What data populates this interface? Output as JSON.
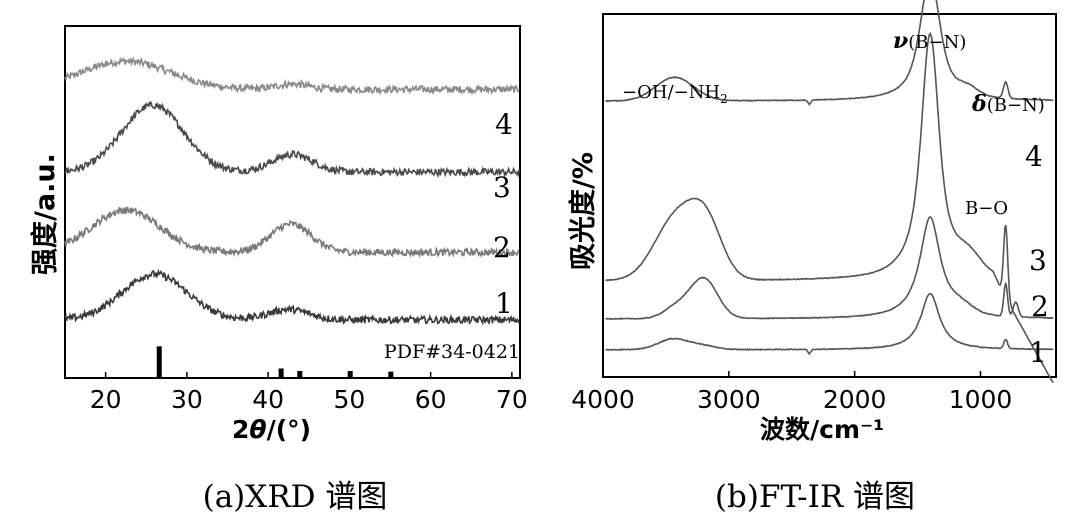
{
  "chart_data": [
    {
      "type": "line",
      "title": "",
      "caption": "(a)XRD 谱图",
      "xlabel_prefix": "2",
      "xlabel_theta": "θ",
      "xlabel_suffix": "/(°)",
      "ylabel": "强度/a.u.",
      "xlim": [
        15,
        71
      ],
      "xticks": [
        "20",
        "30",
        "40",
        "50",
        "60",
        "70"
      ],
      "xtick_values": [
        20,
        30,
        40,
        50,
        60,
        70
      ],
      "reference_label": "PDF#34-0421",
      "reference_peaks": [
        {
          "x": 26.6,
          "intensity": 1.0
        },
        {
          "x": 41.6,
          "intensity": 0.3
        },
        {
          "x": 43.9,
          "intensity": 0.22
        },
        {
          "x": 50.1,
          "intensity": 0.22
        },
        {
          "x": 55.1,
          "intensity": 0.2
        }
      ],
      "series": [
        {
          "name": "4",
          "label": "4",
          "color": "#8a8a8a",
          "baseline": 0.82,
          "peaks": [
            {
              "x": 22.5,
              "h": 0.08,
              "w": 5.5
            },
            {
              "x": 43,
              "h": 0.015,
              "w": 2
            }
          ]
        },
        {
          "name": "3",
          "label": "3",
          "color": "#4a4a4a",
          "baseline": 0.585,
          "peaks": [
            {
              "x": 25.8,
              "h": 0.19,
              "w": 3.8
            },
            {
              "x": 43,
              "h": 0.05,
              "w": 2.5
            }
          ]
        },
        {
          "name": "2",
          "label": "2",
          "color": "#7a7a7a",
          "baseline": 0.357,
          "peaks": [
            {
              "x": 22.5,
              "h": 0.12,
              "w": 4.2
            },
            {
              "x": 42.8,
              "h": 0.08,
              "w": 2.5
            }
          ]
        },
        {
          "name": "1",
          "label": "1",
          "color": "#3a3a3a",
          "baseline": 0.165,
          "peaks": [
            {
              "x": 26,
              "h": 0.13,
              "w": 4.0
            },
            {
              "x": 42.5,
              "h": 0.03,
              "w": 2.5
            }
          ]
        }
      ]
    },
    {
      "type": "line",
      "title": "",
      "caption": "(b)FT-IR 谱图",
      "xlabel": "波数/cm⁻¹",
      "ylabel": "吸光度/%",
      "xlim": [
        4000,
        400
      ],
      "xticks": [
        "4000",
        "3000",
        "2000",
        "1000"
      ],
      "xtick_values": [
        4000,
        3000,
        2000,
        1000
      ],
      "annotations": [
        "−OH/−NH₂",
        "ν(B−N)",
        "δ(B−N)",
        "B−O"
      ],
      "annotation_parts": {
        "oh_nh": "−OH/−NH",
        "oh_nh_sub": "2",
        "nu": "ν",
        "bn": "(B−N)",
        "delta": "δ",
        "bo": "B−O"
      },
      "series": [
        {
          "name": "4",
          "label": "4",
          "color": "#555555",
          "baseline": 0.76
        },
        {
          "name": "3",
          "label": "3",
          "color": "#555555",
          "baseline": 0.265
        },
        {
          "name": "2",
          "label": "2",
          "color": "#555555",
          "baseline": 0.16
        },
        {
          "name": "1",
          "label": "1",
          "color": "#555555",
          "baseline": 0.075
        }
      ]
    }
  ]
}
